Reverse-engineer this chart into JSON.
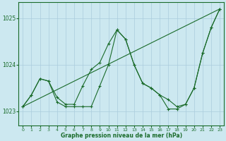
{
  "background_color": "#cce8f0",
  "grid_color": "#aaccdd",
  "line_color": "#1a6b2a",
  "xlabel": "Graphe pression niveau de la mer (hPa)",
  "ylim": [
    1022.7,
    1025.35
  ],
  "xlim": [
    -0.5,
    23.5
  ],
  "yticks": [
    1023,
    1024,
    1025
  ],
  "xticks": [
    0,
    1,
    2,
    3,
    4,
    5,
    6,
    7,
    8,
    9,
    10,
    11,
    12,
    13,
    14,
    15,
    16,
    17,
    18,
    19,
    20,
    21,
    22,
    23
  ],
  "line_straight": {
    "x": [
      0,
      23
    ],
    "y": [
      1023.1,
      1025.2
    ]
  },
  "line_main": {
    "x": [
      0,
      1,
      2,
      3,
      4,
      5,
      6,
      7,
      8,
      9,
      10,
      11,
      12,
      13,
      14,
      15,
      16,
      17,
      18,
      19,
      20,
      21,
      22,
      23
    ],
    "y": [
      1023.1,
      1023.35,
      1023.7,
      1023.65,
      1023.3,
      1023.15,
      1023.15,
      1023.55,
      1023.9,
      1024.05,
      1024.45,
      1024.75,
      1024.55,
      1024.0,
      1023.6,
      1023.5,
      1023.35,
      1023.25,
      1023.1,
      1023.15,
      1023.5,
      1024.25,
      1024.8,
      1025.2
    ]
  },
  "line_dip": {
    "x": [
      0,
      1,
      2,
      3,
      4,
      5,
      6,
      7,
      8,
      9,
      10,
      11,
      12,
      13,
      14,
      15,
      16,
      17,
      18,
      19,
      20,
      21,
      22,
      23
    ],
    "y": [
      1023.1,
      1023.35,
      1023.7,
      1023.65,
      1023.2,
      1023.1,
      1023.1,
      1023.1,
      1023.1,
      1023.55,
      1024.0,
      1024.75,
      1024.55,
      1024.0,
      1023.6,
      1023.5,
      1023.35,
      1023.05,
      1023.05,
      1023.15,
      1023.5,
      1024.25,
      1024.8,
      1025.2
    ]
  }
}
